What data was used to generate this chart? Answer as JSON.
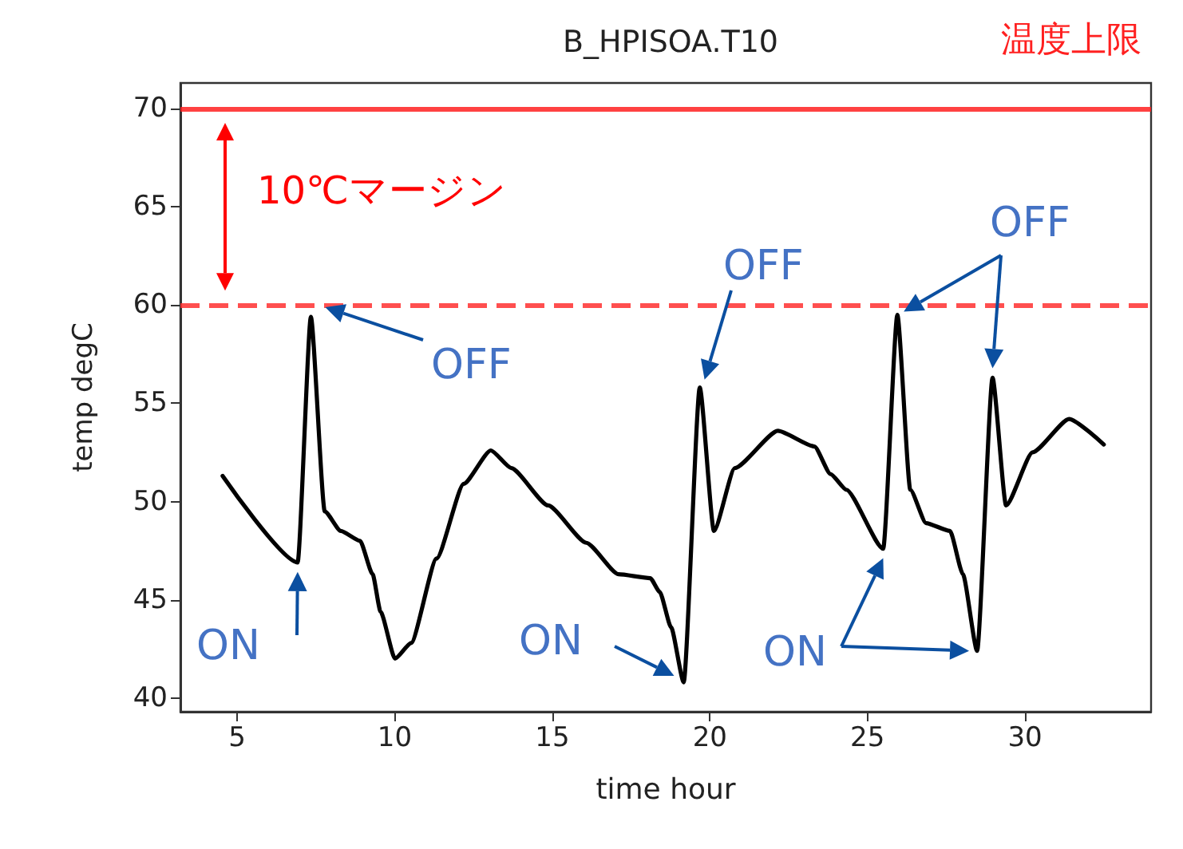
{
  "chart_data": {
    "type": "line",
    "title": "B_HPISOA.T10",
    "xlabel": "time hour",
    "ylabel": "temp degC",
    "x": [
      4.54,
      6.92,
      7.34,
      7.78,
      8.29,
      8.9,
      9.3,
      9.55,
      10.01,
      10.52,
      11.33,
      12.19,
      13.05,
      13.7,
      14.87,
      16.08,
      17.1,
      18.11,
      18.41,
      18.77,
      19.17,
      19.68,
      20.13,
      20.79,
      22.16,
      23.32,
      23.83,
      24.33,
      25.5,
      25.95,
      26.36,
      26.86,
      27.62,
      28.03,
      28.48,
      28.97,
      29.4,
      30.24,
      31.4,
      32.5
    ],
    "series": [
      {
        "color": "#000000",
        "values": [
          51.3,
          46.9,
          59.4,
          49.5,
          48.5,
          48.0,
          46.3,
          44.4,
          42.0,
          42.8,
          47.1,
          50.9,
          52.6,
          51.7,
          49.8,
          47.9,
          46.3,
          46.1,
          45.4,
          43.6,
          40.8,
          55.8,
          48.5,
          51.7,
          53.6,
          52.8,
          51.4,
          50.6,
          47.6,
          59.5,
          50.6,
          48.9,
          48.5,
          46.3,
          42.4,
          56.3,
          49.8,
          52.5,
          54.2,
          52.9
        ]
      }
    ],
    "xlim": [
      3.2,
      34.0
    ],
    "ylim": [
      39.3,
      71.3
    ],
    "xticks": [
      5,
      10,
      15,
      20,
      25,
      30
    ],
    "yticks": [
      40,
      45,
      50,
      55,
      60,
      65,
      70
    ],
    "grid": false,
    "marker": "none",
    "line_style": "solid",
    "ref_lines": [
      {
        "axis": "y",
        "value": 70,
        "label": "温度上限",
        "color": "#ff2020",
        "line_style": "solid"
      },
      {
        "axis": "y",
        "value": 60,
        "color": "#ff3030",
        "line_style": "dashed"
      }
    ],
    "annotations": [
      "10℃マージン",
      {
        "text": "ON",
        "x": 6.92,
        "y": 46.9
      },
      {
        "text": "OFF",
        "x": 7.34,
        "y": 59.4
      },
      {
        "text": "ON",
        "x": 19.17,
        "y": 40.8
      },
      {
        "text": "OFF",
        "x": 19.68,
        "y": 55.8
      },
      {
        "text": "OFF",
        "x": 25.95,
        "y": 59.5
      },
      {
        "text": "ON",
        "x": 25.5,
        "y": 47.6
      }
    ]
  }
}
